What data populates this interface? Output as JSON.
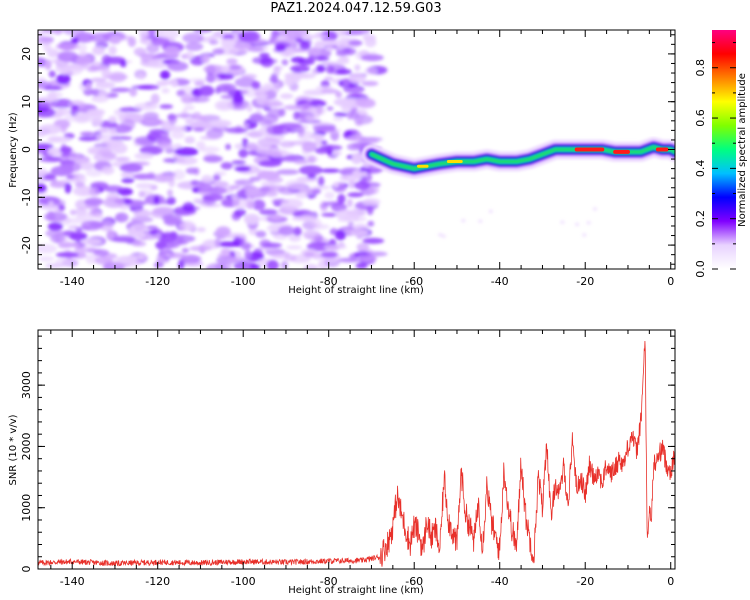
{
  "title": "PAZ1.2024.047.12.59.G03",
  "colors": {
    "spectrogram_noise": [
      "#e6ccff",
      "#d2a8ff",
      "#b57bff",
      "#9b4dff",
      "#7f1fff"
    ],
    "snr_line": "#e8302a",
    "colorbar_stops": [
      "#ffffff",
      "#e8d2ff",
      "#8000ff",
      "#0000ff",
      "#00c0ff",
      "#00ff80",
      "#80ff00",
      "#ffff00",
      "#ff8000",
      "#ff0000",
      "#ff0080"
    ]
  },
  "chart_data": [
    {
      "type": "heatmap",
      "name": "spectrogram",
      "xlabel": "Height of straight line (km)",
      "ylabel": "Frequency (Hz)",
      "xlim": [
        -148,
        1
      ],
      "ylim": [
        -25,
        25
      ],
      "xticks": [
        -140,
        -120,
        -100,
        -80,
        -60,
        -40,
        -20,
        0
      ],
      "yticks": [
        -20,
        -10,
        0,
        10,
        20
      ],
      "noise_region_x": [
        -148,
        -70
      ],
      "signal_track": {
        "x": [
          -70,
          -65,
          -60,
          -57,
          -54,
          -50,
          -46,
          -43,
          -40,
          -36,
          -33,
          -30,
          -27,
          -24,
          -20,
          -16,
          -13,
          -10,
          -7,
          -4,
          -2,
          0,
          1
        ],
        "frequency": [
          -1,
          -3,
          -4,
          -3.5,
          -3,
          -2.5,
          -2.5,
          -2,
          -2.5,
          -2.5,
          -2,
          -1,
          0,
          0,
          0,
          0,
          -0.5,
          -0.5,
          -0.5,
          0.5,
          0,
          0,
          -0.5
        ]
      },
      "colorbar": {
        "label": "Normalized spectral amplitude",
        "range": [
          0,
          0.95
        ],
        "ticks": [
          0.0,
          0.2,
          0.4,
          0.6,
          0.8
        ]
      }
    },
    {
      "type": "line",
      "name": "snr",
      "xlabel": "Height of straight line (km)",
      "ylabel": "SNR (10 * v/v)",
      "xlim": [
        -148,
        1
      ],
      "ylim": [
        0,
        3900
      ],
      "xticks": [
        -140,
        -120,
        -100,
        -80,
        -60,
        -40,
        -20,
        0
      ],
      "yticks": [
        0,
        1000,
        2000,
        3000
      ],
      "series": [
        {
          "x": [
            -148,
            -140,
            -130,
            -120,
            -110,
            -100,
            -90,
            -80,
            -72,
            -68,
            -66,
            -65,
            -64,
            -63,
            -62,
            -61,
            -60,
            -59,
            -58,
            -57,
            -56,
            -55,
            -54,
            -53,
            -52,
            -51,
            -50,
            -49,
            -48,
            -47,
            -46,
            -45,
            -44,
            -43,
            -42,
            -41,
            -40,
            -39,
            -38,
            -37,
            -36,
            -35,
            -34,
            -33,
            -32,
            -31,
            -30,
            -29,
            -28,
            -27,
            -26,
            -25,
            -24,
            -23,
            -22,
            -21,
            -20,
            -19,
            -18,
            -17,
            -16,
            -15,
            -14,
            -13,
            -12,
            -11,
            -10,
            -9,
            -8,
            -7,
            -6.5,
            -6,
            -5.5,
            -5,
            -4.5,
            -4,
            -3,
            -2,
            -1,
            0,
            1
          ],
          "y": [
            100,
            120,
            90,
            110,
            100,
            120,
            110,
            130,
            140,
            200,
            450,
            700,
            1200,
            900,
            650,
            400,
            700,
            600,
            300,
            800,
            500,
            650,
            300,
            1500,
            800,
            600,
            400,
            1600,
            900,
            700,
            450,
            1100,
            350,
            1400,
            800,
            500,
            300,
            1650,
            1000,
            600,
            350,
            1800,
            900,
            500,
            200,
            1500,
            1000,
            2100,
            800,
            1400,
            1200,
            1700,
            1000,
            2150,
            1300,
            1500,
            1200,
            1700,
            1500,
            1600,
            1400,
            1700,
            1550,
            1650,
            1800,
            1700,
            2000,
            2200,
            1900,
            2400,
            3000,
            3850,
            300,
            1000,
            800,
            1700,
            1800,
            2000,
            1700,
            1600,
            1850
          ]
        }
      ]
    }
  ]
}
